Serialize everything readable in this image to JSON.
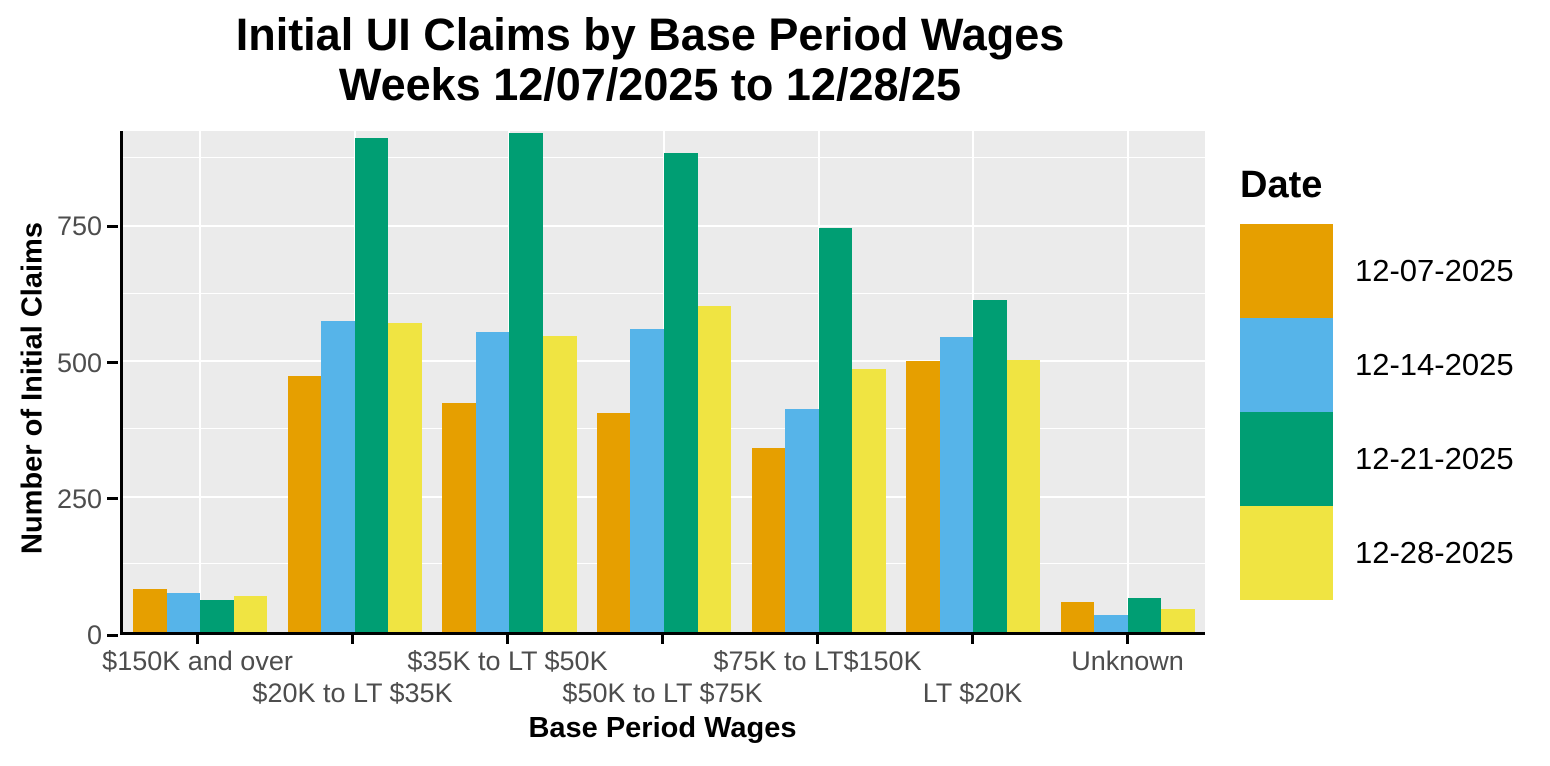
{
  "chart_data": {
    "type": "bar",
    "title": "Initial UI Claims by Base Period Wages",
    "subtitle": "Weeks 12/07/2025 to 12/28/25",
    "xlabel": "Base Period Wages",
    "ylabel": "Number of Initial Claims",
    "categories": [
      "$150K and over",
      "$20K to LT $35K",
      "$35K to LT $50K",
      "$50K to LT $75K",
      "$75K to LT$150K",
      "LT $20K",
      "Unknown"
    ],
    "series": [
      {
        "name": "12-07-2025",
        "color": "#E69F00",
        "values": [
          79,
          473,
          423,
          405,
          339,
          500,
          56
        ]
      },
      {
        "name": "12-14-2025",
        "color": "#56B4E9",
        "values": [
          72,
          575,
          553,
          560,
          411,
          544,
          32
        ]
      },
      {
        "name": "12-21-2025",
        "color": "#009E73",
        "values": [
          60,
          913,
          921,
          884,
          746,
          613,
          62
        ]
      },
      {
        "name": "12-28-2025",
        "color": "#F0E442",
        "values": [
          66,
          571,
          547,
          602,
          485,
          502,
          43
        ]
      }
    ],
    "ylim": [
      0,
      925
    ],
    "yticks": [
      0,
      250,
      500,
      750
    ],
    "yticks_minor": [
      125,
      375,
      625,
      875
    ],
    "grid": true,
    "legend_title": "Date",
    "legend_position": "right",
    "colors": {
      "panel_background": "#EBEBEB",
      "gridline": "#FFFFFF",
      "axis_text": "#4D4D4D",
      "axis_line": "#000000",
      "title_text": "#000000"
    }
  }
}
